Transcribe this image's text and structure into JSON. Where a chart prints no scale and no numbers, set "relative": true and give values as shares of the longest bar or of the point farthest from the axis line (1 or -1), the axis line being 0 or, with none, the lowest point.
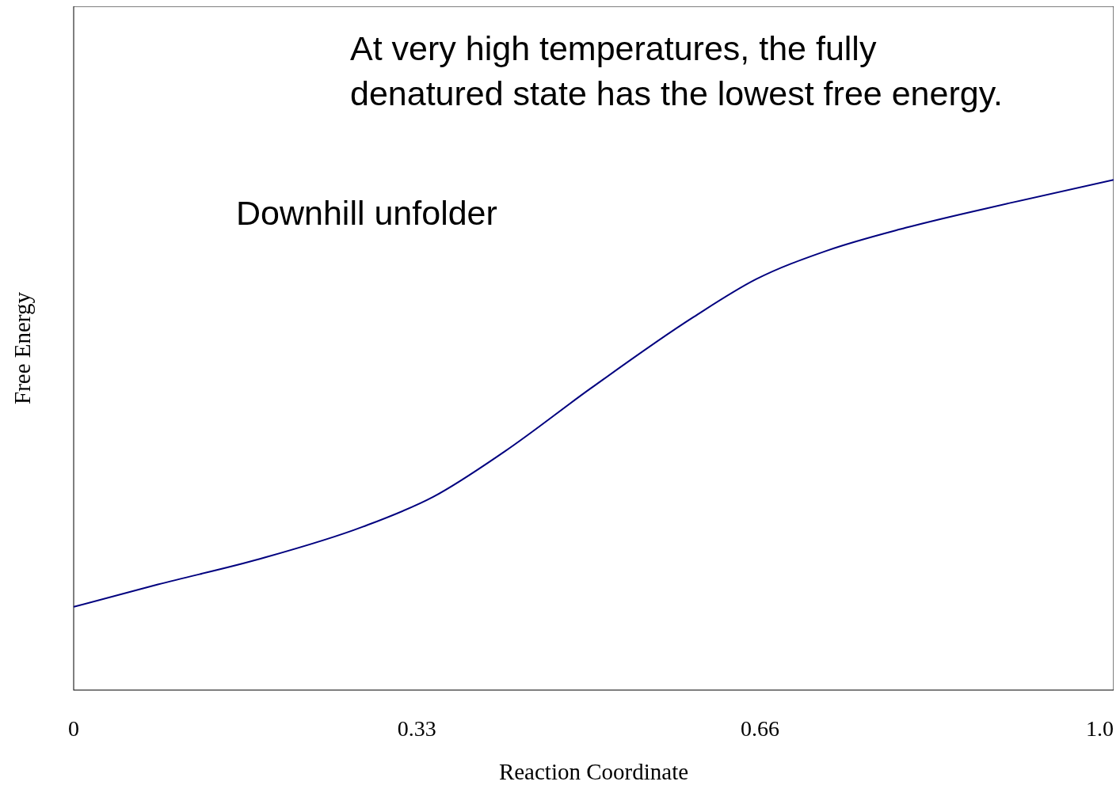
{
  "chart_data": {
    "type": "line",
    "relative": true,
    "xlabel": "Reaction Coordinate",
    "ylabel": "Free Energy",
    "xlim": [
      0,
      1
    ],
    "xticks": [
      0,
      0.33,
      0.66,
      {
        "value": 1,
        "label": "1.0"
      }
    ],
    "annotations": [
      "At very high temperatures, the fully denatured state has the lowest free energy.",
      "Downhill unfolder"
    ],
    "series": [
      {
        "color": "#00007f",
        "x": [
          0,
          0.081,
          0.179,
          0.278,
          0.346,
          0.414,
          0.497,
          0.596,
          0.656,
          0.724,
          0.8,
          0.899,
          1
        ],
        "values": [
          0.163,
          0.207,
          0.257,
          0.32,
          0.379,
          0.467,
          0.591,
          0.731,
          0.805,
          0.861,
          0.906,
          0.954,
          1
        ]
      }
    ]
  }
}
